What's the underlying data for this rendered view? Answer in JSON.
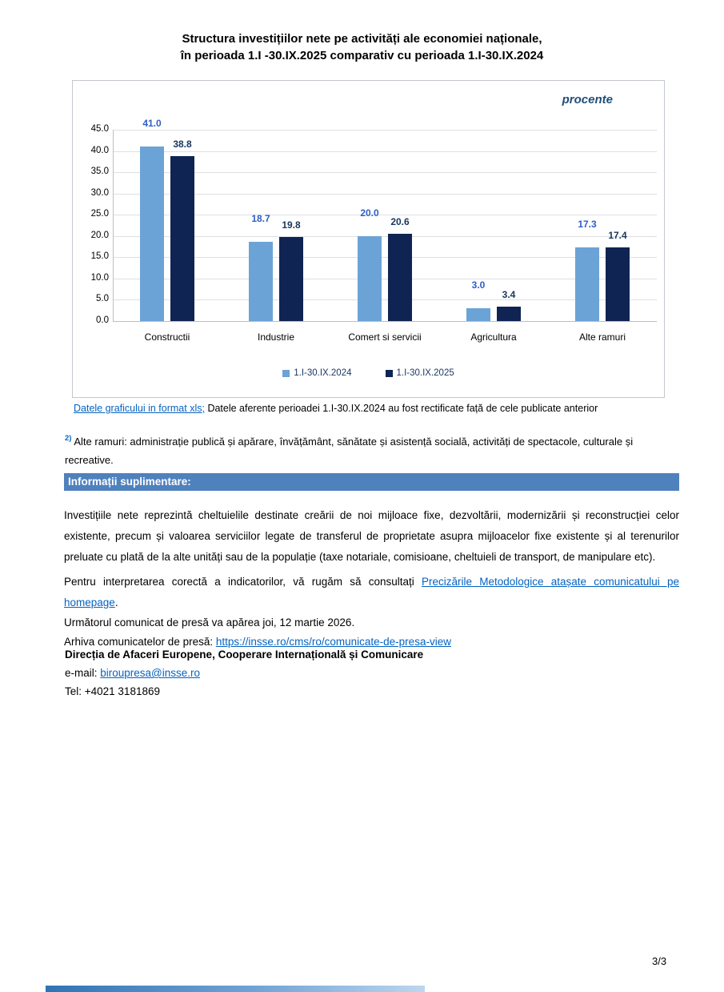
{
  "title": {
    "line1": "Structura investițiilor nete pe activități ale economiei naționale,",
    "line2": "în perioada 1.I -30.IX.2025 comparativ cu perioada 1.I-30.IX.2024"
  },
  "chart_data": {
    "type": "bar",
    "unit_label": "procente",
    "categories": [
      "Constructii",
      "Industrie",
      "Comert si servicii",
      "Agricultura",
      "Alte ramuri"
    ],
    "series": [
      {
        "name": "1.I-30.IX.2024",
        "values": [
          41.0,
          18.7,
          20.0,
          3.0,
          17.3
        ],
        "color": "#6BA3D6",
        "label_color": "#2E5EC8"
      },
      {
        "name": "1.I-30.IX.2025",
        "values": [
          38.8,
          19.8,
          20.6,
          3.4,
          17.4
        ],
        "color": "#0F2452",
        "label_color": "#17365D"
      }
    ],
    "ylim": [
      0,
      45
    ],
    "ytick_step": 5,
    "grid": true,
    "legend_position": "bottom"
  },
  "caption": {
    "link_text": "Datele graficului in format xls;",
    "note_text": "Datele aferente perioadei 1.I-30.IX.2024 au fost rectificate față de cele publicate anterior"
  },
  "footnote": {
    "marker": "2)",
    "text": "Alte ramuri: administrație publică și apărare, învățământ, sănătate și asistență socială, activități de spectacole, culturale și recreative."
  },
  "info_banner_label": "Informații suplimentare:",
  "body": {
    "paragraph1": "Investițiile nete reprezintă cheltuielile destinate creării de noi mijloace fixe, dezvoltării, modernizării și reconstrucției celor existente, precum și valoarea serviciilor legate de transferul de proprietate asupra mijloacelor fixe existente și al terenurilor preluate cu plată de la alte unități sau de la populație (taxe notariale, comisioane, cheltuieli de transport, de manipulare etc).",
    "paragraph2_prefix": "Pentru interpretarea corectă a indicatorilor, vă rugăm să consultați ",
    "paragraph2_link": "Precizările Metodologice atașate comunicatului pe homepage",
    "paragraph2_suffix": ".",
    "next_release_line": "Următorul comunicat de presă va apărea joi, 12 martie 2026.",
    "archive_label": "Arhiva comunicatelor de presă: ",
    "archive_link": "https://insse.ro/cms/ro/comunicate-de-presa-view"
  },
  "contact": {
    "department": "Direcția de Afaceri Europene, Cooperare Internațională și Comunicare",
    "email_label": "e-mail: ",
    "email_link": "biroupresa@insse.ro",
    "tel_line": "Tel: +4021 3181869"
  },
  "page_number": "3/3",
  "colors": {
    "link": "#0563C1",
    "banner_bg": "#4F81BD",
    "banner_text": "#FFFFFF",
    "procente_text": "#1F4E79",
    "gridline": "#DDE0E4"
  }
}
